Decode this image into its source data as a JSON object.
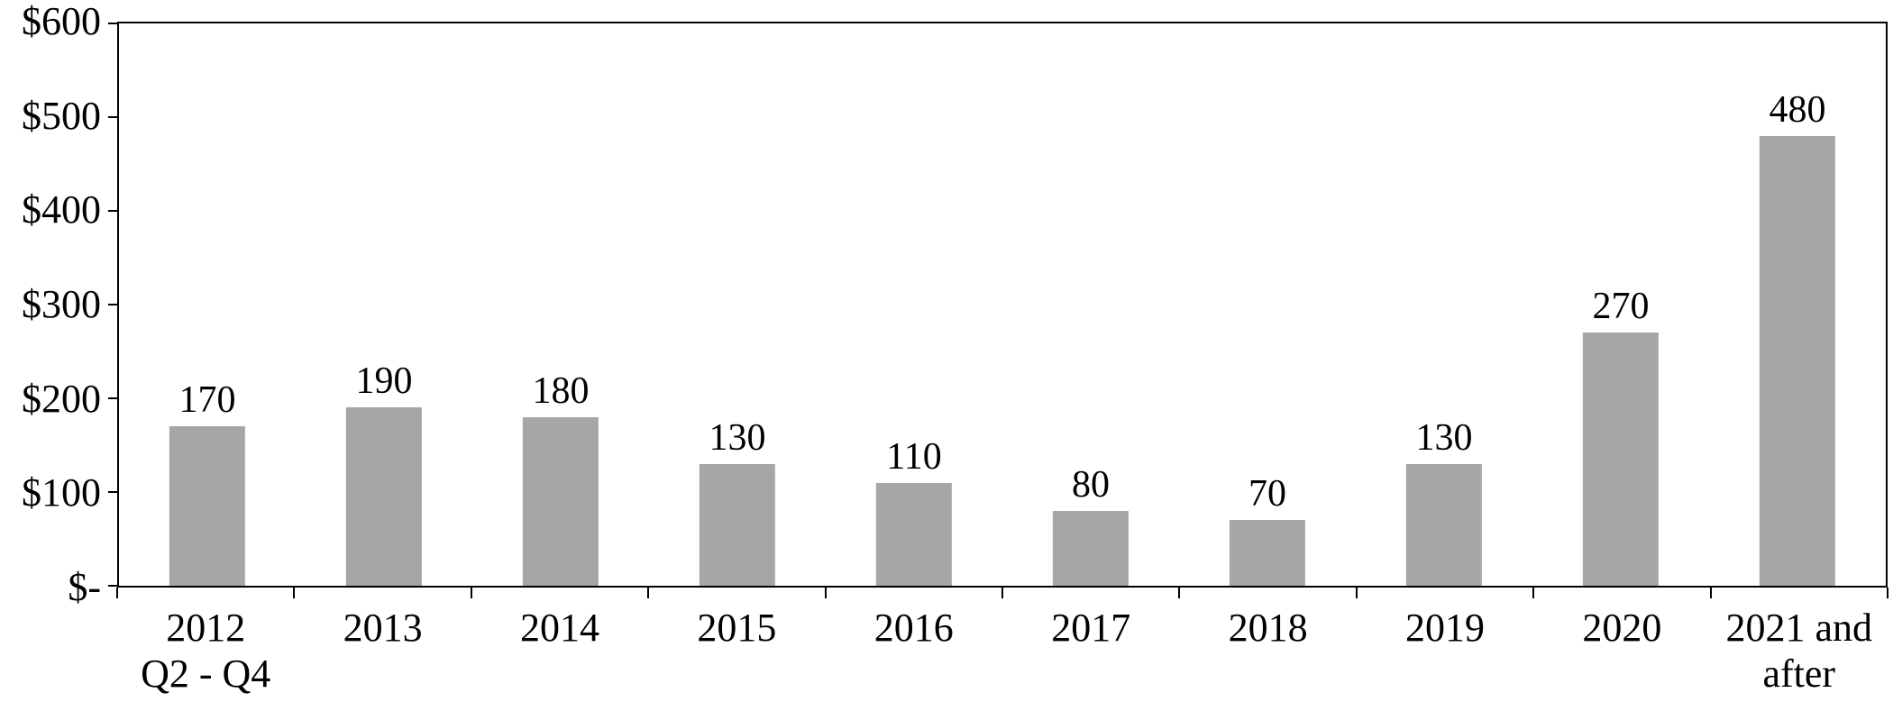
{
  "chart_data": {
    "type": "bar",
    "title": "",
    "xlabel": "",
    "ylabel": "",
    "categories": [
      "2012\nQ2 - Q4",
      "2013",
      "2014",
      "2015",
      "2016",
      "2017",
      "2018",
      "2019",
      "2020",
      "2021 and\nafter"
    ],
    "values": [
      170,
      190,
      180,
      130,
      110,
      80,
      70,
      130,
      270,
      480
    ],
    "data_labels": [
      "170",
      "190",
      "180",
      "130",
      "110",
      "80",
      "70",
      "130",
      "270",
      "480"
    ],
    "ylim": [
      0,
      600
    ],
    "y_ticks": [
      {
        "value": 600,
        "label": "$600"
      },
      {
        "value": 500,
        "label": "$500"
      },
      {
        "value": 400,
        "label": "$400"
      },
      {
        "value": 300,
        "label": "$300"
      },
      {
        "value": 200,
        "label": "$200"
      },
      {
        "value": 100,
        "label": "$100"
      },
      {
        "value": 0,
        "label": "$-"
      }
    ],
    "grid": false,
    "legend": false,
    "bar_color": "#a6a6a6",
    "axis_color": "#000000",
    "background": "#ffffff"
  }
}
